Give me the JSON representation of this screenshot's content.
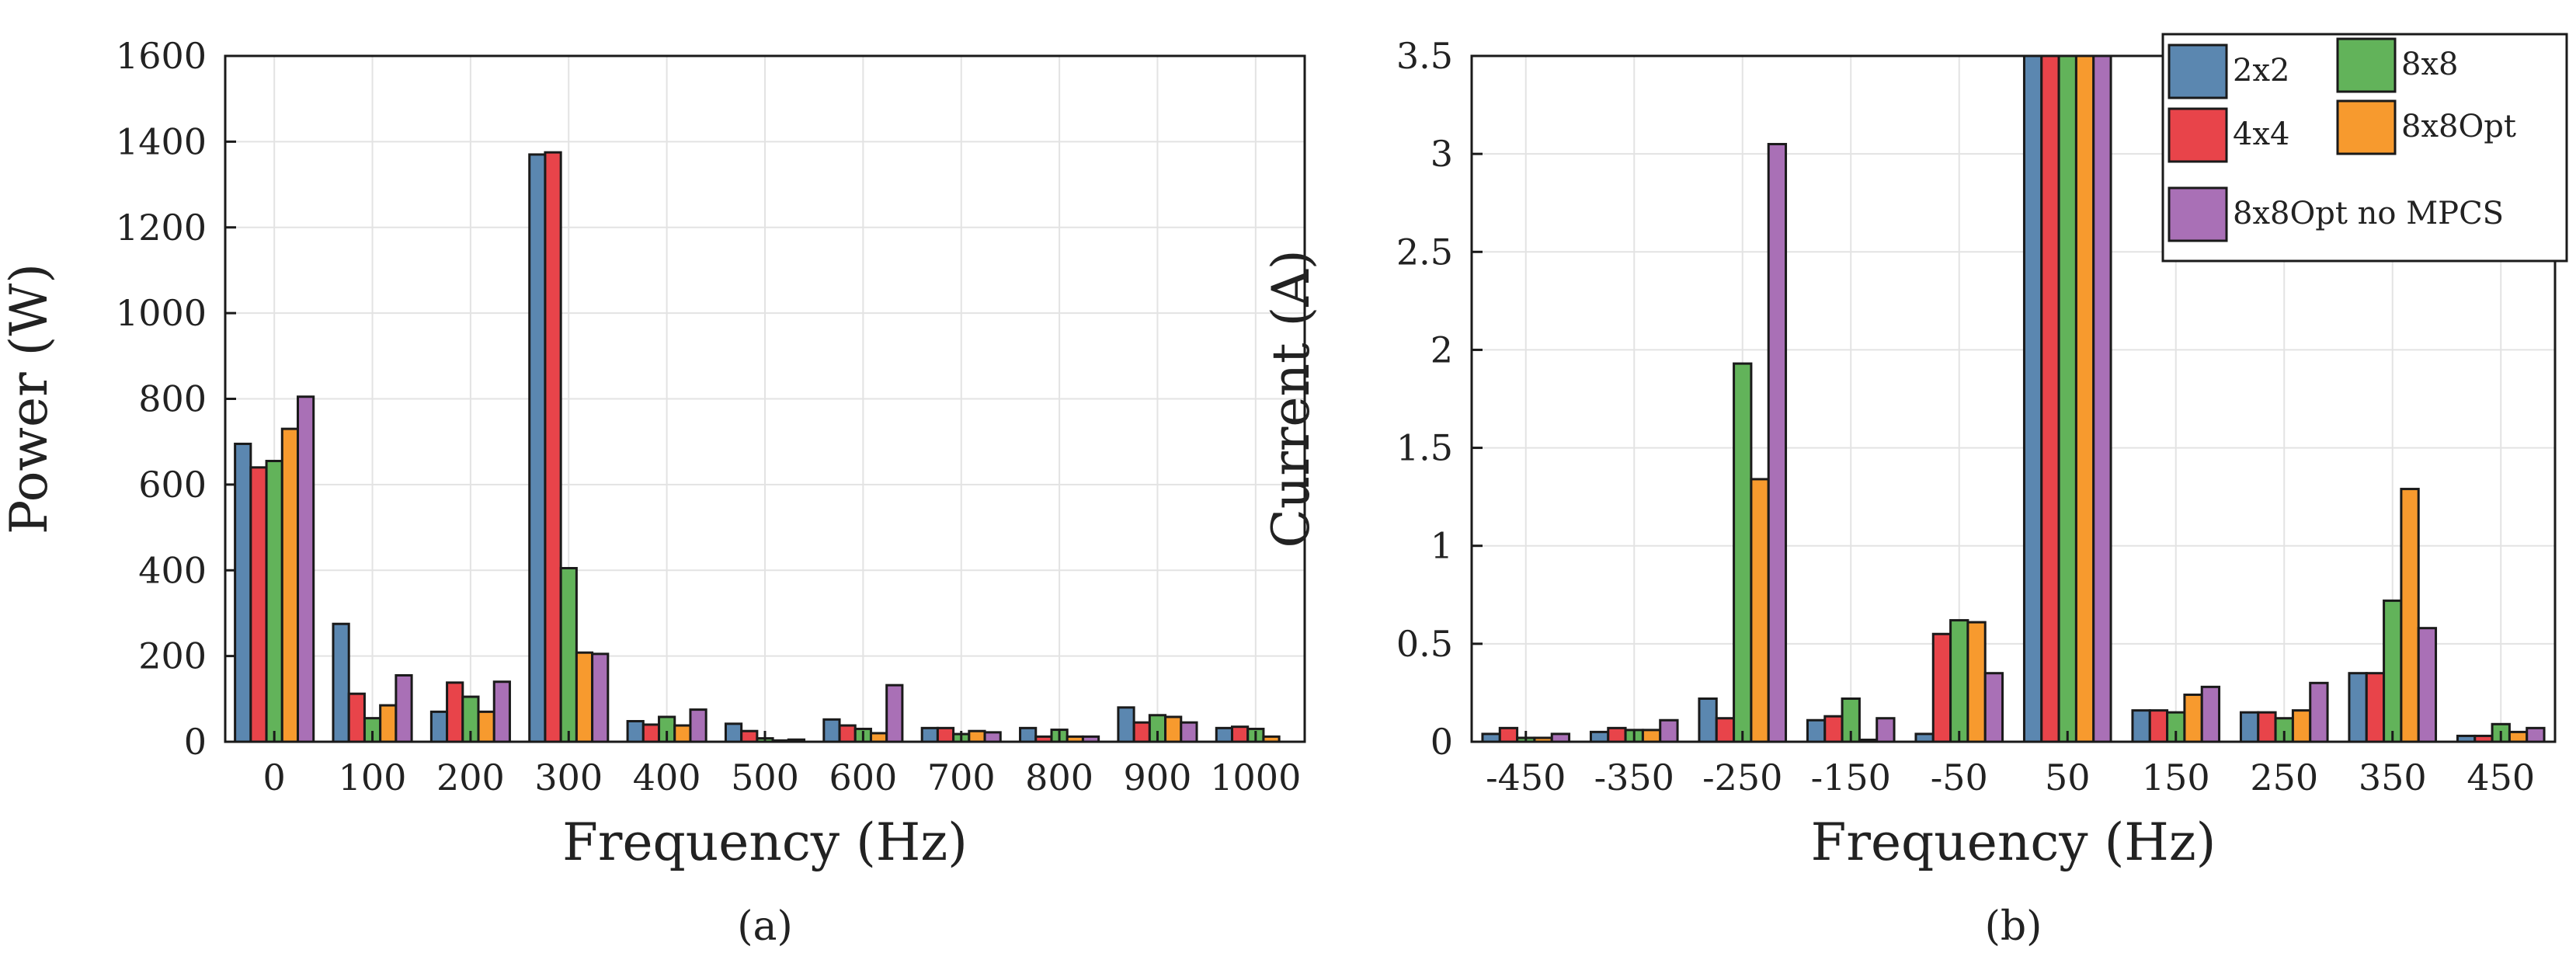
{
  "figure": {
    "series_colors": [
      "#5b87b0",
      "#e8444a",
      "#62b35a",
      "#f79a2e",
      "#a970b6"
    ],
    "legend": [
      {
        "name": "2x2",
        "color": "#5b87b0"
      },
      {
        "name": "4x4",
        "color": "#e8444a"
      },
      {
        "name": "8x8",
        "color": "#62b35a"
      },
      {
        "name": "8x8Opt",
        "color": "#f79a2e"
      },
      {
        "name": "8x8Opt no MPCS",
        "color": "#a970b6"
      }
    ]
  },
  "chart_data": [
    {
      "type": "bar",
      "caption": "(a)",
      "xlabel": "Frequency (Hz)",
      "ylabel": "Power (W)",
      "categories": [
        "0",
        "100",
        "200",
        "300",
        "400",
        "500",
        "600",
        "700",
        "800",
        "900",
        "1000"
      ],
      "ylim": [
        0,
        1600
      ],
      "yticks": [
        0,
        200,
        400,
        600,
        800,
        1000,
        1200,
        1400,
        1600
      ],
      "ytick_labels": [
        "0",
        "200",
        "400",
        "600",
        "800",
        "1000",
        "1200",
        "1400",
        "1600"
      ],
      "grid": true,
      "series": [
        {
          "name": "2x2",
          "values": [
            695,
            275,
            70,
            1370,
            48,
            42,
            52,
            32,
            32,
            80,
            32
          ]
        },
        {
          "name": "4x4",
          "values": [
            640,
            112,
            138,
            1375,
            40,
            25,
            38,
            32,
            12,
            45,
            35
          ]
        },
        {
          "name": "8x8",
          "values": [
            655,
            55,
            105,
            405,
            58,
            8,
            30,
            18,
            28,
            62,
            30
          ]
        },
        {
          "name": "8x8Opt",
          "values": [
            730,
            85,
            70,
            208,
            38,
            3,
            20,
            25,
            12,
            58,
            12
          ]
        },
        {
          "name": "8x8Opt no MPCS",
          "values": [
            805,
            155,
            140,
            205,
            75,
            5,
            132,
            22,
            12,
            45,
            0
          ]
        }
      ]
    },
    {
      "type": "bar",
      "caption": "(b)",
      "xlabel": "Frequency (Hz)",
      "ylabel": "Current (A)",
      "categories": [
        "-450",
        "-350",
        "-250",
        "-150",
        "-50",
        "50",
        "150",
        "250",
        "350",
        "450"
      ],
      "ylim": [
        0,
        3.5
      ],
      "yticks": [
        0,
        0.5,
        1,
        1.5,
        2,
        2.5,
        3,
        3.5
      ],
      "ytick_labels": [
        "0",
        "0.5",
        "1",
        "1.5",
        "2",
        "2.5",
        "3",
        "3.5"
      ],
      "grid": true,
      "legend_position": "top-right",
      "series": [
        {
          "name": "2x2",
          "values": [
            0.04,
            0.05,
            0.22,
            0.11,
            0.04,
            3.5,
            0.16,
            0.15,
            0.35,
            0.03
          ]
        },
        {
          "name": "4x4",
          "values": [
            0.07,
            0.07,
            0.12,
            0.13,
            0.55,
            3.5,
            0.16,
            0.15,
            0.35,
            0.03
          ]
        },
        {
          "name": "8x8",
          "values": [
            0.02,
            0.06,
            1.93,
            0.22,
            0.62,
            3.5,
            0.15,
            0.12,
            0.72,
            0.09
          ]
        },
        {
          "name": "8x8Opt",
          "values": [
            0.02,
            0.06,
            1.34,
            0.01,
            0.61,
            3.5,
            0.24,
            0.16,
            1.29,
            0.05
          ]
        },
        {
          "name": "8x8Opt no MPCS",
          "values": [
            0.04,
            0.11,
            3.05,
            0.12,
            0.35,
            3.5,
            0.28,
            0.3,
            0.58,
            0.07
          ]
        }
      ]
    }
  ]
}
